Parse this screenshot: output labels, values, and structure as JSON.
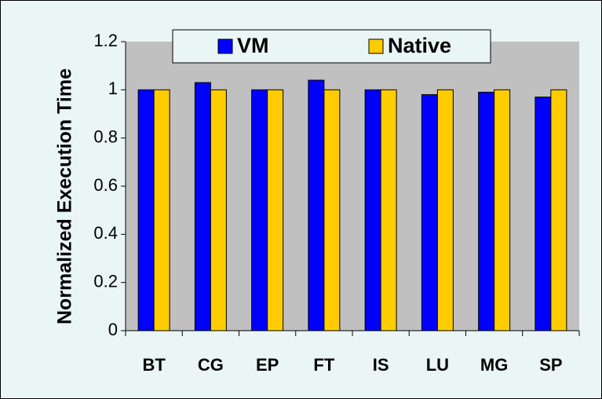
{
  "chart_data": {
    "type": "bar",
    "y_axis_label": "Normalized Execution Time",
    "categories": [
      "BT",
      "CG",
      "EP",
      "FT",
      "IS",
      "LU",
      "MG",
      "SP"
    ],
    "series": [
      {
        "name": "VM",
        "color": "#0000ff",
        "values": [
          1,
          1.03,
          1,
          1.04,
          1,
          0.98,
          0.99,
          0.97
        ]
      },
      {
        "name": "Native",
        "color": "#ffcc00",
        "values": [
          1,
          1,
          1,
          1,
          1,
          1,
          1,
          1
        ]
      }
    ],
    "ylim": [
      0,
      1.2
    ],
    "yticks": [
      0,
      0.2,
      0.4,
      0.6,
      0.8,
      1,
      1.2
    ],
    "grid": false,
    "legend": "top"
  }
}
